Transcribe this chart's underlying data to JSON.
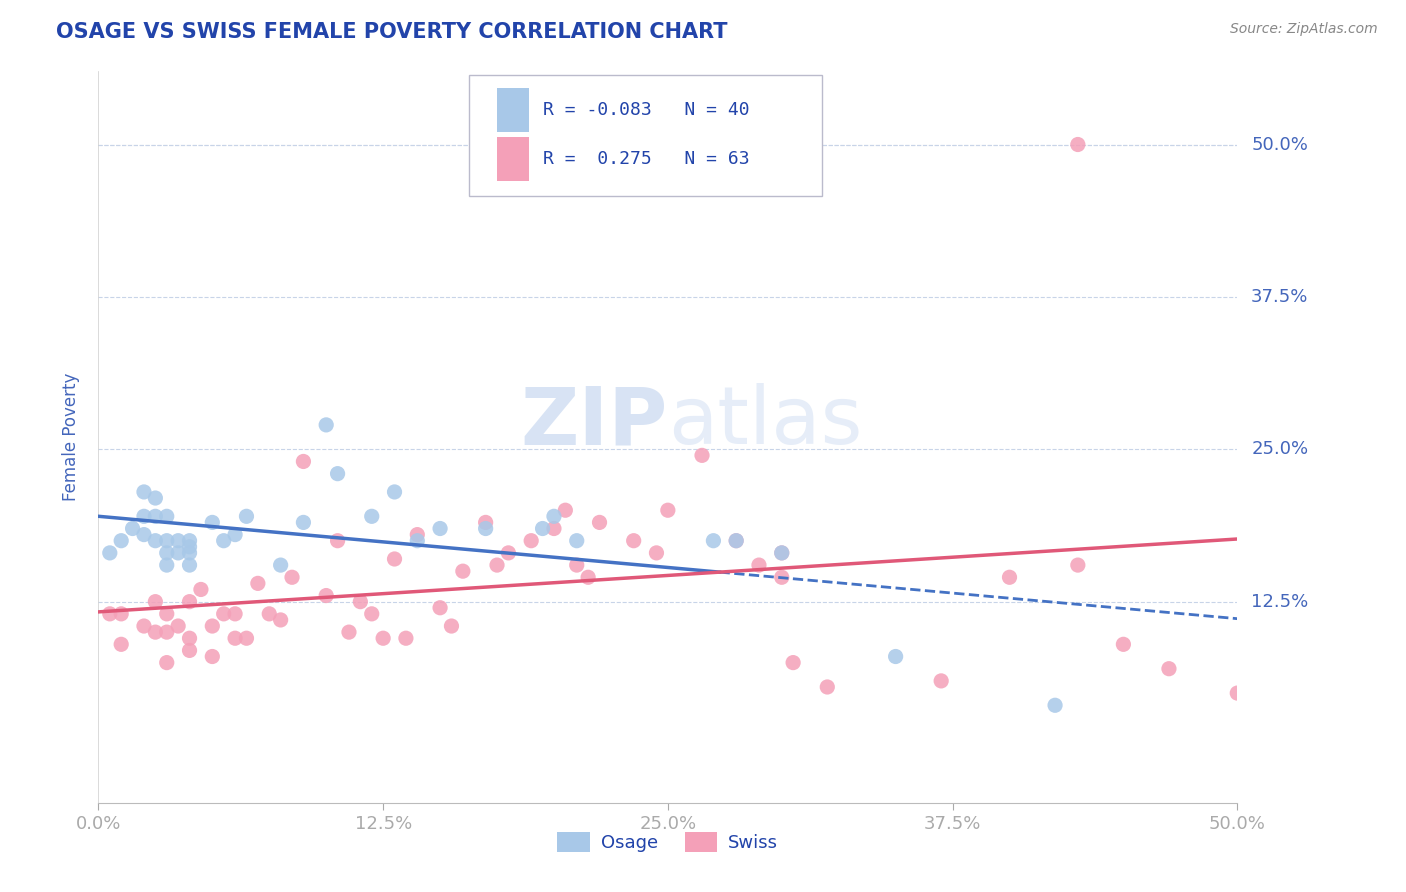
{
  "title": "OSAGE VS SWISS FEMALE POVERTY CORRELATION CHART",
  "source": "Source: ZipAtlas.com",
  "ylabel": "Female Poverty",
  "xlim": [
    0.0,
    0.5
  ],
  "ylim": [
    -0.04,
    0.56
  ],
  "ytick_labels": [
    "12.5%",
    "25.0%",
    "37.5%",
    "50.0%"
  ],
  "ytick_values": [
    0.125,
    0.25,
    0.375,
    0.5
  ],
  "xtick_labels": [
    "0.0%",
    "12.5%",
    "25.0%",
    "37.5%",
    "50.0%"
  ],
  "xtick_values": [
    0.0,
    0.125,
    0.25,
    0.375,
    0.5
  ],
  "osage_R": -0.083,
  "osage_N": 40,
  "swiss_R": 0.275,
  "swiss_N": 63,
  "osage_color": "#a8c8e8",
  "swiss_color": "#f4a0b8",
  "osage_line_color": "#4472c4",
  "swiss_line_color": "#e05878",
  "background_color": "#ffffff",
  "grid_color": "#c8d4e8",
  "title_color": "#2244aa",
  "axis_label_color": "#4466bb",
  "tick_color": "#4466bb",
  "legend_text_color": "#2244aa",
  "watermark_color": "#c8d8f0",
  "osage_x": [
    0.005,
    0.01,
    0.015,
    0.02,
    0.02,
    0.02,
    0.025,
    0.025,
    0.025,
    0.03,
    0.03,
    0.03,
    0.03,
    0.035,
    0.035,
    0.04,
    0.04,
    0.04,
    0.04,
    0.05,
    0.055,
    0.06,
    0.065,
    0.08,
    0.09,
    0.1,
    0.105,
    0.12,
    0.13,
    0.14,
    0.15,
    0.17,
    0.195,
    0.2,
    0.21,
    0.27,
    0.28,
    0.3,
    0.35,
    0.42
  ],
  "osage_y": [
    0.165,
    0.175,
    0.185,
    0.215,
    0.195,
    0.18,
    0.21,
    0.195,
    0.175,
    0.195,
    0.175,
    0.165,
    0.155,
    0.175,
    0.165,
    0.165,
    0.175,
    0.155,
    0.17,
    0.19,
    0.175,
    0.18,
    0.195,
    0.155,
    0.19,
    0.27,
    0.23,
    0.195,
    0.215,
    0.175,
    0.185,
    0.185,
    0.185,
    0.195,
    0.175,
    0.175,
    0.175,
    0.165,
    0.08,
    0.04
  ],
  "swiss_x": [
    0.005,
    0.01,
    0.01,
    0.02,
    0.025,
    0.025,
    0.03,
    0.03,
    0.03,
    0.035,
    0.04,
    0.04,
    0.04,
    0.045,
    0.05,
    0.05,
    0.055,
    0.06,
    0.06,
    0.065,
    0.07,
    0.075,
    0.08,
    0.085,
    0.09,
    0.1,
    0.105,
    0.11,
    0.115,
    0.12,
    0.125,
    0.13,
    0.135,
    0.14,
    0.15,
    0.155,
    0.16,
    0.17,
    0.175,
    0.18,
    0.19,
    0.2,
    0.205,
    0.21,
    0.215,
    0.22,
    0.235,
    0.245,
    0.25,
    0.265,
    0.28,
    0.29,
    0.3,
    0.3,
    0.305,
    0.32,
    0.37,
    0.4,
    0.43,
    0.45,
    0.47,
    0.5,
    0.43
  ],
  "swiss_y": [
    0.115,
    0.09,
    0.115,
    0.105,
    0.1,
    0.125,
    0.1,
    0.115,
    0.075,
    0.105,
    0.085,
    0.095,
    0.125,
    0.135,
    0.08,
    0.105,
    0.115,
    0.095,
    0.115,
    0.095,
    0.14,
    0.115,
    0.11,
    0.145,
    0.24,
    0.13,
    0.175,
    0.1,
    0.125,
    0.115,
    0.095,
    0.16,
    0.095,
    0.18,
    0.12,
    0.105,
    0.15,
    0.19,
    0.155,
    0.165,
    0.175,
    0.185,
    0.2,
    0.155,
    0.145,
    0.19,
    0.175,
    0.165,
    0.2,
    0.245,
    0.175,
    0.155,
    0.145,
    0.165,
    0.075,
    0.055,
    0.06,
    0.145,
    0.155,
    0.09,
    0.07,
    0.05,
    0.5
  ]
}
